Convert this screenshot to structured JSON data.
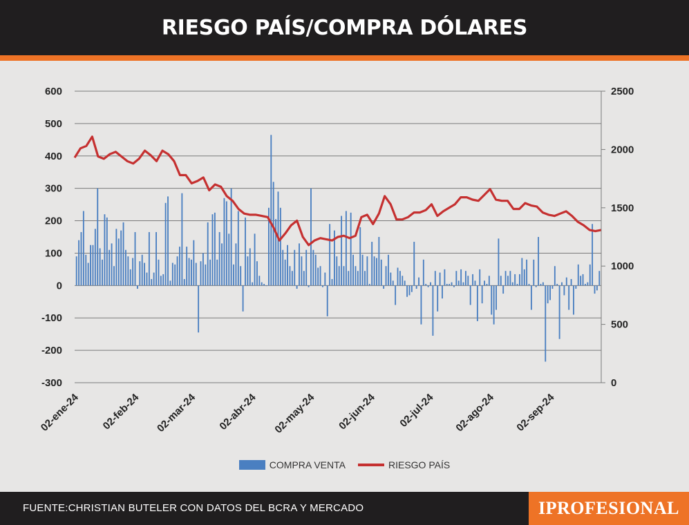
{
  "header": {
    "title": "RIESGO PAÍS/COMPRA DÓLARES"
  },
  "legend": [
    {
      "label": "COMPRA VENTA",
      "color": "#4a7fc1"
    },
    {
      "label": "RIESGO PAÍS",
      "color": "#c53030"
    }
  ],
  "footer": {
    "source": "FUENTE:CHRISTIAN BUTELER CON DATOS DEL BCRA Y MERCADO",
    "logo": "IPROFESIONAL"
  },
  "colors": {
    "header_bg": "#201e1f",
    "accent": "#ee7326",
    "bars": "#4a7fc1",
    "line": "#c53030",
    "grid": "#7a7a7a"
  },
  "chart_data": {
    "type": "bar+line",
    "title": "RIESGO PAÍS/COMPRA DÓLARES",
    "x_tick_labels": [
      "02-ene-24",
      "02-feb-24",
      "02-mar-24",
      "02-abr-24",
      "02-may-24",
      "02-jun-24",
      "02-jul-24",
      "02-ago-24",
      "02-sep-24"
    ],
    "y_left": {
      "ticks": [
        600,
        500,
        400,
        300,
        200,
        100,
        0,
        -100,
        -200,
        -300
      ],
      "range": [
        -300,
        600
      ]
    },
    "y_right": {
      "ticks": [
        2500,
        2000,
        1500,
        1000,
        500,
        0
      ],
      "range": [
        0,
        2500
      ]
    },
    "grid": true,
    "legend_position": "bottom",
    "series": [
      {
        "name": "COMPRA VENTA",
        "type": "bar",
        "axis": "left",
        "values": [
          90,
          140,
          165,
          230,
          95,
          70,
          125,
          125,
          175,
          300,
          115,
          80,
          220,
          210,
          110,
          130,
          60,
          175,
          145,
          170,
          195,
          110,
          90,
          50,
          85,
          165,
          -10,
          75,
          95,
          70,
          40,
          165,
          20,
          40,
          165,
          80,
          30,
          35,
          255,
          275,
          15,
          70,
          65,
          90,
          120,
          285,
          20,
          120,
          85,
          80,
          140,
          70,
          -145,
          75,
          100,
          65,
          195,
          80,
          220,
          225,
          80,
          165,
          130,
          270,
          260,
          160,
          300,
          65,
          130,
          230,
          60,
          -80,
          210,
          90,
          115,
          10,
          160,
          75,
          30,
          10,
          5,
          0,
          240,
          465,
          320,
          205,
          290,
          240,
          110,
          80,
          125,
          60,
          45,
          110,
          -10,
          130,
          90,
          45,
          110,
          -5,
          300,
          110,
          95,
          55,
          60,
          -5,
          40,
          -95,
          190,
          20,
          170,
          90,
          60,
          215,
          60,
          230,
          45,
          225,
          95,
          60,
          45,
          180,
          95,
          45,
          90,
          5,
          135,
          90,
          85,
          150,
          80,
          -10,
          60,
          95,
          40,
          15,
          -60,
          55,
          45,
          30,
          15,
          -35,
          -30,
          -20,
          135,
          -10,
          25,
          -120,
          80,
          5,
          -5,
          10,
          -155,
          45,
          -80,
          40,
          -40,
          50,
          5,
          5,
          10,
          -5,
          45,
          15,
          50,
          10,
          45,
          30,
          -60,
          35,
          15,
          -110,
          50,
          -55,
          15,
          5,
          30,
          -90,
          -120,
          -75,
          145,
          30,
          -25,
          45,
          30,
          45,
          10,
          35,
          5,
          35,
          85,
          50,
          80,
          5,
          -75,
          80,
          -5,
          150,
          5,
          10,
          -235,
          -55,
          -45,
          -10,
          60,
          5,
          -165,
          10,
          -30,
          25,
          -75,
          20,
          -90,
          -10,
          65,
          30,
          35,
          5,
          10,
          65,
          190,
          -25,
          -15,
          45
        ],
        "x_index_note": "bars in chronological order, 02-ene-24 to late sep-24"
      },
      {
        "name": "RIESGO PAÍS",
        "type": "line",
        "axis": "right",
        "x": [
          "2024-01-02",
          "2024-01-05",
          "2024-01-08",
          "2024-01-11",
          "2024-01-14",
          "2024-01-17",
          "2024-01-20",
          "2024-01-23",
          "2024-01-26",
          "2024-01-29",
          "2024-02-01",
          "2024-02-04",
          "2024-02-07",
          "2024-02-10",
          "2024-02-13",
          "2024-02-16",
          "2024-02-19",
          "2024-02-22",
          "2024-02-25",
          "2024-02-28",
          "2024-03-02",
          "2024-03-05",
          "2024-03-08",
          "2024-03-11",
          "2024-03-14",
          "2024-03-17",
          "2024-03-20",
          "2024-03-23",
          "2024-03-26",
          "2024-03-29",
          "2024-04-01",
          "2024-04-04",
          "2024-04-07",
          "2024-04-10",
          "2024-04-13",
          "2024-04-16",
          "2024-04-19",
          "2024-04-22",
          "2024-04-25",
          "2024-04-28",
          "2024-05-01",
          "2024-05-04",
          "2024-05-07",
          "2024-05-10",
          "2024-05-13",
          "2024-05-16",
          "2024-05-19",
          "2024-05-22",
          "2024-05-25",
          "2024-05-28",
          "2024-05-31",
          "2024-06-03",
          "2024-06-06",
          "2024-06-09",
          "2024-06-12",
          "2024-06-15",
          "2024-06-18",
          "2024-06-21",
          "2024-06-24",
          "2024-06-27",
          "2024-06-30",
          "2024-07-03",
          "2024-07-06",
          "2024-07-09",
          "2024-07-12",
          "2024-07-15",
          "2024-07-18",
          "2024-07-21",
          "2024-07-24",
          "2024-07-27",
          "2024-07-30",
          "2024-08-02",
          "2024-08-05",
          "2024-08-08",
          "2024-08-11",
          "2024-08-14",
          "2024-08-17",
          "2024-08-20",
          "2024-08-23",
          "2024-08-26",
          "2024-08-29",
          "2024-09-01",
          "2024-09-04",
          "2024-09-07",
          "2024-09-10",
          "2024-09-13",
          "2024-09-16",
          "2024-09-19",
          "2024-09-22",
          "2024-09-25",
          "2024-09-28"
        ],
        "values": [
          1930,
          2010,
          2030,
          2110,
          1940,
          1920,
          1960,
          1980,
          1940,
          1900,
          1880,
          1920,
          1990,
          1950,
          1900,
          1990,
          1960,
          1900,
          1780,
          1780,
          1710,
          1730,
          1760,
          1650,
          1700,
          1680,
          1600,
          1560,
          1490,
          1450,
          1440,
          1440,
          1430,
          1420,
          1330,
          1220,
          1280,
          1350,
          1390,
          1250,
          1180,
          1220,
          1240,
          1230,
          1220,
          1250,
          1260,
          1240,
          1260,
          1420,
          1440,
          1360,
          1450,
          1600,
          1530,
          1400,
          1400,
          1420,
          1460,
          1460,
          1480,
          1530,
          1430,
          1470,
          1500,
          1530,
          1590,
          1590,
          1570,
          1560,
          1610,
          1660,
          1570,
          1560,
          1560,
          1490,
          1490,
          1540,
          1520,
          1510,
          1460,
          1440,
          1430,
          1450,
          1470,
          1430,
          1380,
          1350,
          1310,
          1300,
          1310
        ]
      }
    ]
  }
}
